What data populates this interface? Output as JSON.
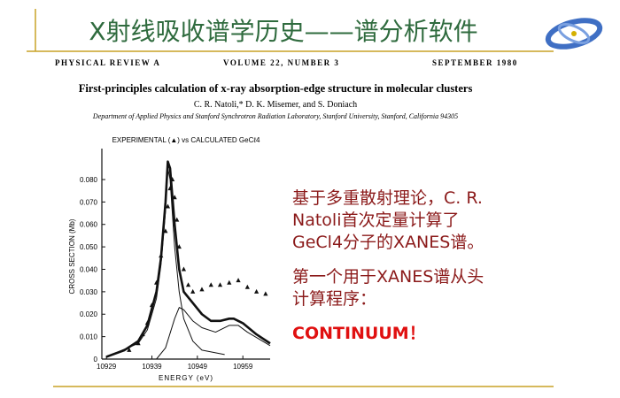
{
  "slide": {
    "title": "X射线吸收谱学历史——谱分析软件",
    "points": [
      {
        "lines": [
          "基于多重散射理论，C. R.",
          "Natoli首次定量计算了",
          "GeCl4分子的XANES谱。"
        ]
      },
      {
        "lines": [
          "第一个用于XANES谱从头",
          "计算程序："
        ]
      },
      {
        "lines": [
          "CONTINUUM！"
        ]
      }
    ]
  },
  "paper": {
    "journal": "PHYSICAL REVIEW A",
    "volume": "VOLUME 22, NUMBER 3",
    "date": "SEPTEMBER 1980",
    "title": "First-principles calculation of x-ray absorption-edge structure in molecular clusters",
    "authors": "C. R. Natoli,* D. K. Misemer, and S. Doniach",
    "affiliation": "Department of Applied Physics and Stanford Synchrotron Radiation Laboratory, Stanford University, Stanford, California 94305"
  },
  "chart_data": {
    "type": "line",
    "title": "EXPERIMENTAL (▲) vs CALCULATED GeCℓ4",
    "x_label": "ENERGY (eV)",
    "y_label": "CROSS SECTION (Mb)",
    "xlim": [
      10928,
      10965
    ],
    "xticks": [
      10929,
      10939,
      10949,
      10959
    ],
    "ylim": [
      0,
      0.093
    ],
    "yticks": [
      0,
      {
        "value": 0.01,
        "label": "0.010"
      },
      {
        "value": 0.02,
        "label": "0.020"
      },
      {
        "value": 0.03,
        "label": "0.030"
      },
      {
        "value": 0.04,
        "label": "0.040"
      },
      {
        "value": 0.05,
        "label": "0.050"
      },
      {
        "value": 0.06,
        "label": "0.060"
      },
      {
        "value": 0.07,
        "label": "0.070"
      },
      {
        "value": 0.08,
        "label": "0.080"
      }
    ],
    "series": [
      {
        "color": "#111111",
        "marker": "triangle",
        "x": [
          10934,
          10936,
          10937,
          10938,
          10939,
          10940,
          10941,
          10942,
          10942.5,
          10943,
          10943.5,
          10944,
          10944.5,
          10945,
          10946,
          10947,
          10948,
          10950,
          10952,
          10954,
          10956,
          10958,
          10960,
          10962,
          10964
        ],
        "values": [
          0.004,
          0.007,
          0.011,
          0.016,
          0.024,
          0.034,
          0.046,
          0.057,
          0.068,
          0.076,
          0.08,
          0.072,
          0.062,
          0.05,
          0.04,
          0.033,
          0.03,
          0.031,
          0.033,
          0.033,
          0.034,
          0.035,
          0.032,
          0.03,
          0.029
        ]
      },
      {
        "color": "#111111",
        "line_width": 2.6,
        "x": [
          10929,
          10933,
          10936,
          10938,
          10940,
          10941,
          10942,
          10942.5,
          10943,
          10944,
          10945,
          10946,
          10948,
          10950,
          10952,
          10954,
          10956,
          10957,
          10959,
          10962,
          10965
        ],
        "values": [
          0.001,
          0.004,
          0.008,
          0.015,
          0.03,
          0.045,
          0.07,
          0.088,
          0.085,
          0.06,
          0.04,
          0.03,
          0.025,
          0.02,
          0.017,
          0.017,
          0.018,
          0.018,
          0.016,
          0.011,
          0.007
        ]
      },
      {
        "color": "#111111",
        "line_width": 1,
        "x": [
          10929,
          10936,
          10938,
          10940,
          10941,
          10942,
          10942.5,
          10943,
          10944,
          10945,
          10946,
          10948,
          10950,
          10955
        ],
        "values": [
          0.001,
          0.007,
          0.013,
          0.027,
          0.042,
          0.066,
          0.085,
          0.08,
          0.05,
          0.03,
          0.018,
          0.008,
          0.004,
          0.002
        ]
      },
      {
        "color": "#111111",
        "line_width": 1,
        "x": [
          10940,
          10942,
          10944,
          10945,
          10946,
          10948,
          10950,
          10953,
          10956,
          10958,
          10960,
          10965
        ],
        "values": [
          0,
          0.005,
          0.018,
          0.023,
          0.022,
          0.017,
          0.014,
          0.012,
          0.015,
          0.015,
          0.012,
          0.006
        ]
      }
    ]
  }
}
